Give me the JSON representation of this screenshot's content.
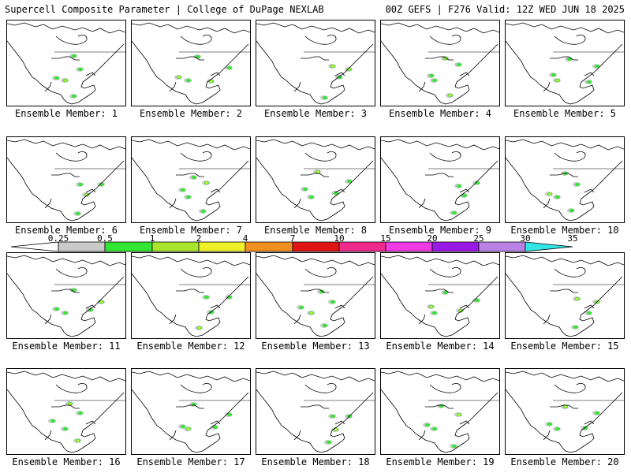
{
  "header": {
    "left": "Supercell Composite Parameter | College of DuPage NEXLAB",
    "right": "00Z GEFS | F276 Valid: 12Z WED JUN 18 2025"
  },
  "colorbar": {
    "labels": [
      "0.25",
      "0.5",
      "1",
      "2",
      "4",
      "7",
      "10",
      "15",
      "20",
      "25",
      "30",
      "35"
    ],
    "colors": [
      "#ffffff",
      "#c9c9c9",
      "#33e633",
      "#a8e62e",
      "#f0f02a",
      "#f09021",
      "#e01414",
      "#f02a8a",
      "#f03ae6",
      "#9b19e6",
      "#b983e6",
      "#33e6e6"
    ]
  },
  "panels": [
    {
      "caption": "Ensemble Member: 1"
    },
    {
      "caption": "Ensemble Member: 2"
    },
    {
      "caption": "Ensemble Member: 3"
    },
    {
      "caption": "Ensemble Member: 4"
    },
    {
      "caption": "Ensemble Member: 5"
    },
    {
      "caption": "Ensemble Member: 6"
    },
    {
      "caption": "Ensemble Member: 7"
    },
    {
      "caption": "Ensemble Member: 8"
    },
    {
      "caption": "Ensemble Member: 9"
    },
    {
      "caption": "Ensemble Member: 10"
    },
    {
      "caption": "Ensemble Member: 11"
    },
    {
      "caption": "Ensemble Member: 12"
    },
    {
      "caption": "Ensemble Member: 13"
    },
    {
      "caption": "Ensemble Member: 14"
    },
    {
      "caption": "Ensemble Member: 15"
    },
    {
      "caption": "Ensemble Member: 16"
    },
    {
      "caption": "Ensemble Member: 17"
    },
    {
      "caption": "Ensemble Member: 18"
    },
    {
      "caption": "Ensemble Member: 19"
    },
    {
      "caption": "Ensemble Member: 20"
    }
  ]
}
